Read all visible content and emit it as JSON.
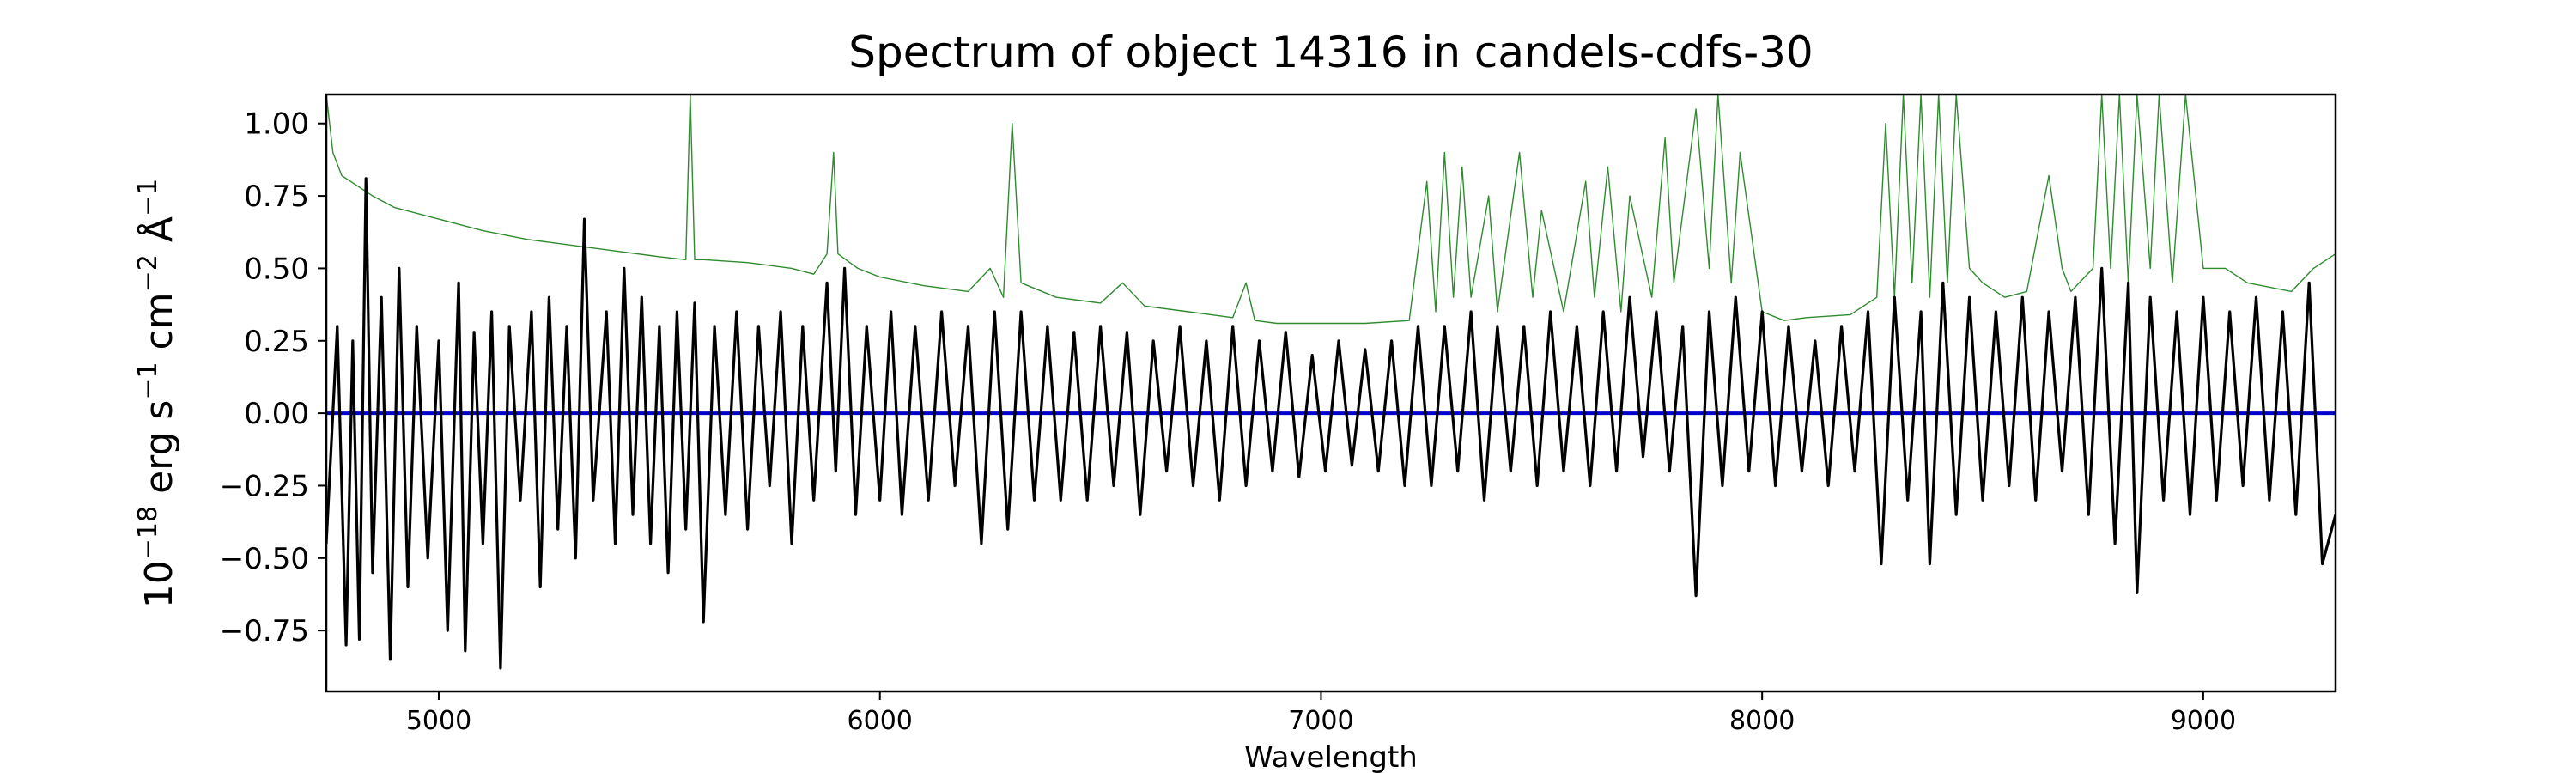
{
  "chart_data": {
    "type": "line",
    "title": "Spectrum of object 14316 in candels-cdfs-30",
    "xlabel": "Wavelength",
    "ylabel": "10^-18 erg s^-1 cm^-2 Å^-1",
    "ylabel_parts": {
      "base1": "10",
      "exp1": "−18",
      "unit1": "erg s",
      "exp2": "−1",
      "unit2": "cm",
      "exp3": "−2",
      "unit3": "Å",
      "exp4": "−1"
    },
    "xlim": [
      4745,
      9300
    ],
    "ylim": [
      -0.96,
      1.1
    ],
    "x_ticks": [
      5000,
      6000,
      7000,
      8000,
      9000
    ],
    "x_tick_labels": [
      "5000",
      "6000",
      "7000",
      "8000",
      "9000"
    ],
    "y_ticks": [
      -0.75,
      -0.5,
      -0.25,
      0.0,
      0.25,
      0.5,
      0.75,
      1.0
    ],
    "y_tick_labels": [
      "−0.75",
      "−0.50",
      "−0.25",
      "0.00",
      "0.25",
      "0.50",
      "0.75",
      "1.00"
    ],
    "grid": false,
    "legend": "none",
    "series": [
      {
        "role": "flux",
        "color": "#000000",
        "points": [
          [
            4745,
            -0.45
          ],
          [
            4770,
            0.3
          ],
          [
            4790,
            -0.8
          ],
          [
            4805,
            0.25
          ],
          [
            4820,
            -0.78
          ],
          [
            4835,
            0.81
          ],
          [
            4850,
            -0.55
          ],
          [
            4870,
            0.4
          ],
          [
            4890,
            -0.85
          ],
          [
            4910,
            0.5
          ],
          [
            4930,
            -0.6
          ],
          [
            4950,
            0.3
          ],
          [
            4975,
            -0.5
          ],
          [
            5000,
            0.25
          ],
          [
            5020,
            -0.75
          ],
          [
            5045,
            0.45
          ],
          [
            5060,
            -0.82
          ],
          [
            5080,
            0.28
          ],
          [
            5100,
            -0.45
          ],
          [
            5120,
            0.35
          ],
          [
            5140,
            -0.88
          ],
          [
            5160,
            0.3
          ],
          [
            5185,
            -0.3
          ],
          [
            5210,
            0.35
          ],
          [
            5230,
            -0.6
          ],
          [
            5250,
            0.4
          ],
          [
            5270,
            -0.4
          ],
          [
            5290,
            0.3
          ],
          [
            5310,
            -0.5
          ],
          [
            5330,
            0.67
          ],
          [
            5350,
            -0.3
          ],
          [
            5380,
            0.35
          ],
          [
            5400,
            -0.45
          ],
          [
            5420,
            0.5
          ],
          [
            5440,
            -0.35
          ],
          [
            5460,
            0.4
          ],
          [
            5480,
            -0.45
          ],
          [
            5500,
            0.3
          ],
          [
            5520,
            -0.55
          ],
          [
            5540,
            0.35
          ],
          [
            5560,
            -0.4
          ],
          [
            5580,
            0.38
          ],
          [
            5600,
            -0.72
          ],
          [
            5625,
            0.3
          ],
          [
            5650,
            -0.35
          ],
          [
            5675,
            0.35
          ],
          [
            5700,
            -0.4
          ],
          [
            5725,
            0.3
          ],
          [
            5750,
            -0.25
          ],
          [
            5775,
            0.35
          ],
          [
            5800,
            -0.45
          ],
          [
            5825,
            0.3
          ],
          [
            5850,
            -0.3
          ],
          [
            5880,
            0.45
          ],
          [
            5900,
            -0.2
          ],
          [
            5920,
            0.5
          ],
          [
            5945,
            -0.35
          ],
          [
            5970,
            0.3
          ],
          [
            6000,
            -0.3
          ],
          [
            6025,
            0.35
          ],
          [
            6050,
            -0.35
          ],
          [
            6080,
            0.3
          ],
          [
            6110,
            -0.3
          ],
          [
            6140,
            0.35
          ],
          [
            6170,
            -0.25
          ],
          [
            6200,
            0.3
          ],
          [
            6230,
            -0.45
          ],
          [
            6260,
            0.35
          ],
          [
            6290,
            -0.4
          ],
          [
            6320,
            0.35
          ],
          [
            6350,
            -0.3
          ],
          [
            6380,
            0.3
          ],
          [
            6410,
            -0.3
          ],
          [
            6440,
            0.28
          ],
          [
            6470,
            -0.3
          ],
          [
            6500,
            0.3
          ],
          [
            6530,
            -0.25
          ],
          [
            6560,
            0.28
          ],
          [
            6590,
            -0.35
          ],
          [
            6620,
            0.25
          ],
          [
            6650,
            -0.2
          ],
          [
            6680,
            0.3
          ],
          [
            6710,
            -0.25
          ],
          [
            6740,
            0.25
          ],
          [
            6770,
            -0.3
          ],
          [
            6800,
            0.3
          ],
          [
            6830,
            -0.25
          ],
          [
            6860,
            0.25
          ],
          [
            6890,
            -0.2
          ],
          [
            6920,
            0.28
          ],
          [
            6950,
            -0.22
          ],
          [
            6980,
            0.2
          ],
          [
            7010,
            -0.2
          ],
          [
            7040,
            0.25
          ],
          [
            7070,
            -0.18
          ],
          [
            7100,
            0.22
          ],
          [
            7130,
            -0.2
          ],
          [
            7160,
            0.25
          ],
          [
            7190,
            -0.25
          ],
          [
            7220,
            0.3
          ],
          [
            7250,
            -0.25
          ],
          [
            7280,
            0.3
          ],
          [
            7310,
            -0.2
          ],
          [
            7340,
            0.35
          ],
          [
            7370,
            -0.3
          ],
          [
            7400,
            0.3
          ],
          [
            7430,
            -0.2
          ],
          [
            7460,
            0.3
          ],
          [
            7490,
            -0.25
          ],
          [
            7520,
            0.35
          ],
          [
            7550,
            -0.2
          ],
          [
            7580,
            0.3
          ],
          [
            7610,
            -0.25
          ],
          [
            7640,
            0.35
          ],
          [
            7670,
            -0.2
          ],
          [
            7700,
            0.4
          ],
          [
            7730,
            -0.15
          ],
          [
            7760,
            0.35
          ],
          [
            7790,
            -0.2
          ],
          [
            7820,
            0.3
          ],
          [
            7850,
            -0.63
          ],
          [
            7880,
            0.35
          ],
          [
            7910,
            -0.25
          ],
          [
            7940,
            0.4
          ],
          [
            7970,
            -0.2
          ],
          [
            8000,
            0.35
          ],
          [
            8030,
            -0.25
          ],
          [
            8060,
            0.3
          ],
          [
            8090,
            -0.2
          ],
          [
            8120,
            0.25
          ],
          [
            8150,
            -0.25
          ],
          [
            8180,
            0.3
          ],
          [
            8210,
            -0.2
          ],
          [
            8240,
            0.35
          ],
          [
            8270,
            -0.52
          ],
          [
            8300,
            0.4
          ],
          [
            8330,
            -0.3
          ],
          [
            8360,
            0.35
          ],
          [
            8380,
            -0.52
          ],
          [
            8410,
            0.45
          ],
          [
            8440,
            -0.35
          ],
          [
            8470,
            0.4
          ],
          [
            8500,
            -0.3
          ],
          [
            8530,
            0.35
          ],
          [
            8560,
            -0.25
          ],
          [
            8590,
            0.4
          ],
          [
            8620,
            -0.3
          ],
          [
            8650,
            0.35
          ],
          [
            8680,
            -0.2
          ],
          [
            8710,
            0.4
          ],
          [
            8740,
            -0.35
          ],
          [
            8770,
            0.5
          ],
          [
            8800,
            -0.45
          ],
          [
            8830,
            0.45
          ],
          [
            8850,
            -0.62
          ],
          [
            8880,
            0.4
          ],
          [
            8910,
            -0.3
          ],
          [
            8940,
            0.35
          ],
          [
            8970,
            -0.35
          ],
          [
            9000,
            0.4
          ],
          [
            9030,
            -0.3
          ],
          [
            9060,
            0.35
          ],
          [
            9090,
            -0.25
          ],
          [
            9120,
            0.4
          ],
          [
            9150,
            -0.3
          ],
          [
            9180,
            0.35
          ],
          [
            9210,
            -0.35
          ],
          [
            9240,
            0.45
          ],
          [
            9270,
            -0.52
          ],
          [
            9300,
            -0.35
          ]
        ]
      },
      {
        "role": "error",
        "color": "#2e8b2e",
        "points": [
          [
            4745,
            1.1
          ],
          [
            4760,
            0.9
          ],
          [
            4780,
            0.82
          ],
          [
            4800,
            0.8
          ],
          [
            4850,
            0.75
          ],
          [
            4900,
            0.71
          ],
          [
            5000,
            0.67
          ],
          [
            5100,
            0.63
          ],
          [
            5200,
            0.6
          ],
          [
            5300,
            0.58
          ],
          [
            5400,
            0.56
          ],
          [
            5500,
            0.54
          ],
          [
            5560,
            0.53
          ],
          [
            5570,
            1.1
          ],
          [
            5580,
            0.53
          ],
          [
            5600,
            0.53
          ],
          [
            5700,
            0.52
          ],
          [
            5800,
            0.5
          ],
          [
            5850,
            0.48
          ],
          [
            5880,
            0.55
          ],
          [
            5895,
            0.9
          ],
          [
            5905,
            0.55
          ],
          [
            5950,
            0.5
          ],
          [
            6000,
            0.47
          ],
          [
            6100,
            0.44
          ],
          [
            6200,
            0.42
          ],
          [
            6250,
            0.5
          ],
          [
            6280,
            0.4
          ],
          [
            6300,
            1.0
          ],
          [
            6320,
            0.45
          ],
          [
            6400,
            0.4
          ],
          [
            6500,
            0.38
          ],
          [
            6550,
            0.45
          ],
          [
            6600,
            0.37
          ],
          [
            6700,
            0.35
          ],
          [
            6800,
            0.33
          ],
          [
            6830,
            0.45
          ],
          [
            6850,
            0.32
          ],
          [
            6900,
            0.31
          ],
          [
            7000,
            0.31
          ],
          [
            7100,
            0.31
          ],
          [
            7200,
            0.32
          ],
          [
            7240,
            0.8
          ],
          [
            7260,
            0.35
          ],
          [
            7280,
            0.9
          ],
          [
            7300,
            0.4
          ],
          [
            7320,
            0.85
          ],
          [
            7340,
            0.4
          ],
          [
            7380,
            0.75
          ],
          [
            7400,
            0.35
          ],
          [
            7450,
            0.9
          ],
          [
            7480,
            0.4
          ],
          [
            7500,
            0.7
          ],
          [
            7550,
            0.35
          ],
          [
            7600,
            0.8
          ],
          [
            7620,
            0.4
          ],
          [
            7650,
            0.85
          ],
          [
            7680,
            0.35
          ],
          [
            7700,
            0.75
          ],
          [
            7750,
            0.4
          ],
          [
            7780,
            0.95
          ],
          [
            7800,
            0.45
          ],
          [
            7850,
            1.05
          ],
          [
            7880,
            0.5
          ],
          [
            7900,
            1.1
          ],
          [
            7930,
            0.45
          ],
          [
            7950,
            0.9
          ],
          [
            8000,
            0.35
          ],
          [
            8050,
            0.32
          ],
          [
            8100,
            0.33
          ],
          [
            8200,
            0.34
          ],
          [
            8260,
            0.4
          ],
          [
            8280,
            1.0
          ],
          [
            8300,
            0.4
          ],
          [
            8320,
            1.1
          ],
          [
            8340,
            0.45
          ],
          [
            8360,
            1.1
          ],
          [
            8380,
            0.4
          ],
          [
            8400,
            1.1
          ],
          [
            8420,
            0.45
          ],
          [
            8440,
            1.1
          ],
          [
            8470,
            0.5
          ],
          [
            8500,
            0.45
          ],
          [
            8550,
            0.4
          ],
          [
            8600,
            0.42
          ],
          [
            8650,
            0.82
          ],
          [
            8680,
            0.5
          ],
          [
            8700,
            0.42
          ],
          [
            8750,
            0.5
          ],
          [
            8770,
            1.1
          ],
          [
            8790,
            0.5
          ],
          [
            8810,
            1.1
          ],
          [
            8830,
            0.45
          ],
          [
            8850,
            1.1
          ],
          [
            8880,
            0.5
          ],
          [
            8900,
            1.1
          ],
          [
            8930,
            0.45
          ],
          [
            8960,
            1.1
          ],
          [
            9000,
            0.5
          ],
          [
            9050,
            0.5
          ],
          [
            9100,
            0.45
          ],
          [
            9200,
            0.42
          ],
          [
            9250,
            0.5
          ],
          [
            9300,
            0.55
          ]
        ]
      },
      {
        "role": "zero",
        "color": "#0000cc",
        "points": [
          [
            4745,
            0.0
          ],
          [
            9300,
            0.0
          ]
        ]
      }
    ]
  }
}
